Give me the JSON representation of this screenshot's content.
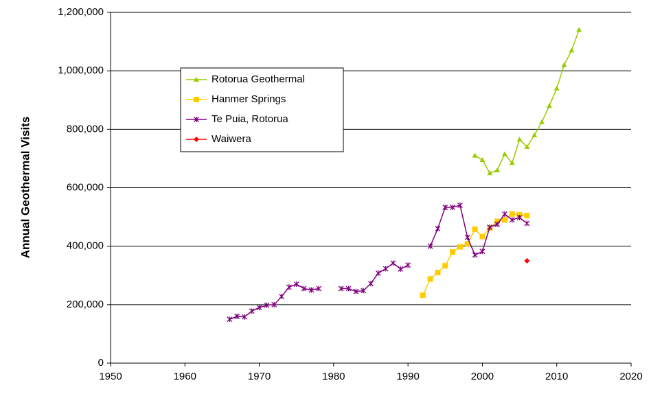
{
  "chart_data": {
    "type": "line",
    "y_label": "Annual Geothermal Visits",
    "xlim": [
      1950,
      2020
    ],
    "xticks": [
      1950,
      1960,
      1970,
      1980,
      1990,
      2000,
      2010,
      2020
    ],
    "ylim": [
      0,
      1200000
    ],
    "yticks": [
      0,
      {
        "value": 200000,
        "label": "200,000"
      },
      {
        "value": 400000,
        "label": "400,000"
      },
      {
        "value": 600000,
        "label": "600,000"
      },
      {
        "value": 800000,
        "label": "800,000"
      },
      {
        "value": 1000000,
        "label": "1,000,000"
      },
      {
        "value": 1200000,
        "label": "1,200,000"
      }
    ],
    "grid": true,
    "series": [
      {
        "name": "Rotorua Geothermal",
        "color": "#99CC00",
        "marker": "triangle",
        "x": [
          1999,
          2000,
          2001,
          2002,
          2003,
          2004,
          2005,
          2006,
          2007,
          2008,
          2009,
          2010,
          2011,
          2012,
          2013
        ],
        "values": [
          710000,
          695000,
          650000,
          660000,
          715000,
          685000,
          765000,
          740000,
          780000,
          825000,
          880000,
          940000,
          1020000,
          1070000,
          1140000
        ]
      },
      {
        "name": "Hanmer Springs",
        "color": "#FFCC00",
        "marker": "square",
        "x": [
          1992,
          1993,
          1994,
          1995,
          1996,
          1997,
          1998,
          1999,
          2000,
          2001,
          2002,
          2003,
          2004,
          2005,
          2006
        ],
        "values": [
          232000,
          288000,
          310000,
          333000,
          380000,
          398000,
          408000,
          458000,
          433000,
          462000,
          485000,
          490000,
          510000,
          508000,
          505000
        ]
      },
      {
        "name": "Te Puia, Rotorua",
        "color": "#800080",
        "marker": "x",
        "x": [
          1966,
          1967,
          1968,
          1969,
          1970,
          1971,
          1972,
          1973,
          1974,
          1975,
          1976,
          1977,
          1978,
          1979,
          1980,
          1981,
          1982,
          1983,
          1984,
          1985,
          1986,
          1987,
          1988,
          1989,
          1990,
          1991,
          1992,
          1993,
          1994,
          1995,
          1996,
          1997,
          1998,
          1999,
          2000,
          2001,
          2002,
          2003,
          2004,
          2005,
          2006
        ],
        "values": [
          150000,
          160000,
          158000,
          178000,
          190000,
          198000,
          200000,
          228000,
          260000,
          270000,
          255000,
          250000,
          255000,
          null,
          null,
          255000,
          255000,
          245000,
          248000,
          272000,
          308000,
          323000,
          342000,
          322000,
          335000,
          null,
          null,
          400000,
          460000,
          533000,
          533000,
          540000,
          430000,
          370000,
          382000,
          465000,
          475000,
          510000,
          490000,
          498000,
          478000
        ]
      },
      {
        "name": "Waiwera",
        "color": "#FF0000",
        "marker": "diamond",
        "x": [
          2006
        ],
        "values": [
          350000
        ]
      }
    ]
  }
}
